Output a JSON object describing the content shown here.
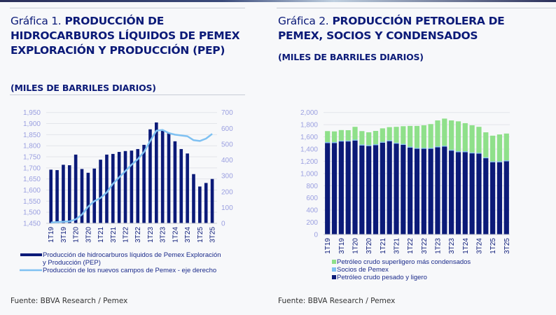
{
  "chart_data": [
    {
      "type": "bar+line",
      "title_prefix": "Gráfica 1.",
      "title": "PRODUCCIÓN DE HIDROCARBUROS LÍQUIDOS DE PEMEX EXPLORACIÓN Y PRODUCCIÓN (PEP)",
      "subtitle": "(MILES DE BARRILES DIARIOS)",
      "source": "Fuente: BBVA Research / Pemex",
      "categories": [
        "1T19",
        "2T19",
        "3T19",
        "4T19",
        "1T20",
        "2T20",
        "3T20",
        "4T20",
        "1T21",
        "2T21",
        "3T21",
        "4T21",
        "1T22",
        "2T22",
        "3T22",
        "4T22",
        "1T23",
        "2T23",
        "3T23",
        "4T23",
        "1T24",
        "2T24",
        "3T24",
        "4T24",
        "1T25",
        "2T25",
        "3T25"
      ],
      "xtick_labels": [
        "1T19",
        "3T19",
        "1T20",
        "3T20",
        "1T21",
        "3T21",
        "1T22",
        "3T22",
        "1T23",
        "3T23",
        "1T24",
        "3T24",
        "1T25",
        "3T25"
      ],
      "ylim": [
        1450,
        1950
      ],
      "yticks": [
        "1,450",
        "1,500",
        "1,550",
        "1,600",
        "1,650",
        "1,700",
        "1,750",
        "1,800",
        "1,850",
        "1,900",
        "1,950"
      ],
      "y2lim": [
        0,
        700
      ],
      "y2ticks": [
        "0",
        "100",
        "200",
        "300",
        "400",
        "500",
        "600",
        "700"
      ],
      "grid": true,
      "legend_position": "bottom",
      "series": [
        {
          "name": "Producción de hidrocarburos líquidos de Pemex Exploración y Producción (PEP)",
          "kind": "bar",
          "axis": "left",
          "color": "#0b1a78",
          "values": [
            1692,
            1690,
            1714,
            1712,
            1760,
            1695,
            1678,
            1697,
            1737,
            1760,
            1763,
            1772,
            1776,
            1778,
            1785,
            1804,
            1874,
            1905,
            1868,
            1858,
            1820,
            1785,
            1765,
            1672,
            1616,
            1632,
            1650
          ]
        },
        {
          "name": "Producción de los nuevos campos de Pemex - eje derecho",
          "kind": "line",
          "axis": "right",
          "color": "#7fc1f2",
          "values": [
            5,
            8,
            10,
            12,
            25,
            55,
            105,
            140,
            160,
            195,
            250,
            290,
            330,
            370,
            405,
            450,
            520,
            585,
            590,
            570,
            560,
            555,
            550,
            525,
            520,
            535,
            565
          ]
        }
      ]
    },
    {
      "type": "stacked-bar",
      "title_prefix": "Gráfica 2.",
      "title": "PRODUCCIÓN PETROLERA DE PEMEX, SOCIOS Y CONDENSADOS",
      "subtitle": "(MILES DE BARRILES DIARIOS)",
      "source": "Fuente: BBVA Research / Pemex",
      "categories": [
        "1T19",
        "2T19",
        "3T19",
        "4T19",
        "1T20",
        "2T20",
        "3T20",
        "4T20",
        "1T21",
        "2T21",
        "3T21",
        "4T21",
        "1T22",
        "2T22",
        "3T22",
        "4T22",
        "1T23",
        "2T23",
        "3T23",
        "4T23",
        "1T24",
        "2T24",
        "3T24",
        "4T24",
        "1T25",
        "2T25",
        "3T25"
      ],
      "xtick_labels": [
        "1T19",
        "3T19",
        "1T20",
        "3T20",
        "1T21",
        "3T21",
        "1T22",
        "3T22",
        "1T23",
        "3T23",
        "1T24",
        "3T24",
        "1T25",
        "3T25"
      ],
      "ylim": [
        0,
        2000
      ],
      "yticks": [
        "0",
        "200",
        "400",
        "600",
        "800",
        "1,000",
        "1,200",
        "1,400",
        "1,600",
        "1,800",
        "2,000"
      ],
      "grid": true,
      "legend_position": "bottom",
      "series": [
        {
          "name": "Petróleo crudo pesado y ligero",
          "color": "#0b1a78",
          "values": [
            1500,
            1500,
            1525,
            1525,
            1540,
            1460,
            1450,
            1465,
            1505,
            1530,
            1490,
            1470,
            1425,
            1405,
            1405,
            1405,
            1430,
            1440,
            1375,
            1350,
            1350,
            1330,
            1325,
            1250,
            1185,
            1185,
            1200
          ]
        },
        {
          "name": "Socios de Pemex",
          "color": "#7fc1f2",
          "values": [
            15,
            15,
            15,
            15,
            15,
            15,
            15,
            15,
            15,
            15,
            15,
            15,
            15,
            15,
            15,
            15,
            15,
            15,
            15,
            15,
            15,
            15,
            15,
            15,
            15,
            15,
            15
          ]
        },
        {
          "name": "Petróleo crudo superligero más condensados",
          "color": "#8fe08a",
          "values": [
            180,
            175,
            172,
            170,
            210,
            220,
            210,
            218,
            220,
            215,
            260,
            290,
            340,
            360,
            370,
            390,
            425,
            445,
            480,
            490,
            460,
            445,
            425,
            410,
            420,
            440,
            440
          ]
        }
      ],
      "legend_order": [
        "Petróleo crudo superligero más condensados",
        "Socios de Pemex",
        "Petróleo crudo pesado y ligero"
      ]
    }
  ]
}
